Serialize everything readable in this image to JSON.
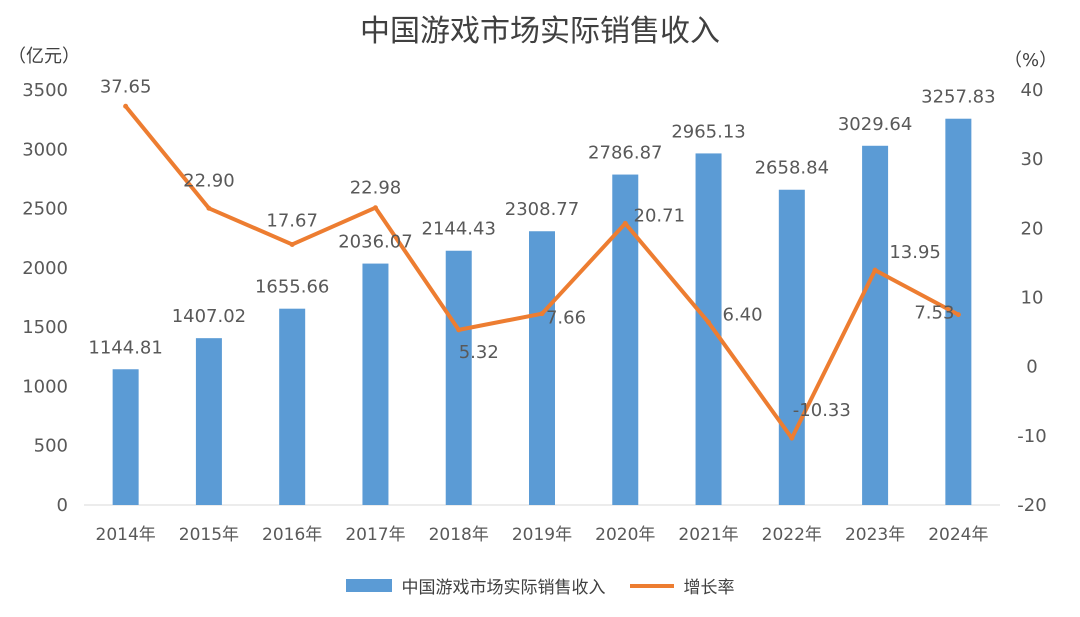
{
  "chart_data": {
    "type": "bar",
    "title": "中国游戏市场实际销售收入",
    "left_unit": "（亿元）",
    "right_unit": "（%）",
    "categories": [
      "2014年",
      "2015年",
      "2016年",
      "2017年",
      "2018年",
      "2019年",
      "2020年",
      "2021年",
      "2022年",
      "2023年",
      "2024年"
    ],
    "series": [
      {
        "name": "中国游戏市场实际销售收入",
        "type": "bar",
        "axis": "left",
        "color": "#5b9bd5",
        "values": [
          1144.81,
          1407.02,
          1655.66,
          2036.07,
          2144.43,
          2308.77,
          2786.87,
          2965.13,
          2658.84,
          3029.64,
          3257.83
        ],
        "labels": [
          "1144.81",
          "1407.02",
          "1655.66",
          "2036.07",
          "2144.43",
          "2308.77",
          "2786.87",
          "2965.13",
          "2658.84",
          "3029.64",
          "3257.83"
        ]
      },
      {
        "name": "增长率",
        "type": "line",
        "axis": "right",
        "color": "#ed7d31",
        "values": [
          37.65,
          22.9,
          17.67,
          22.98,
          5.32,
          7.66,
          20.71,
          6.4,
          -10.33,
          13.95,
          7.53
        ],
        "labels": [
          "37.65",
          "22.90",
          "17.67",
          "22.98",
          "5.32",
          "7.66",
          "20.71",
          "6.40",
          "-10.33",
          "13.95",
          "7.53"
        ]
      }
    ],
    "y_left": {
      "min": 0,
      "max": 3500,
      "ticks": [
        "0",
        "500",
        "1000",
        "1500",
        "2000",
        "2500",
        "3000",
        "3500"
      ]
    },
    "y_right": {
      "min": -20,
      "max": 40,
      "ticks": [
        "-20",
        "-10",
        "0",
        "10",
        "20",
        "30",
        "40"
      ]
    },
    "grid": false,
    "legend_position": "bottom"
  }
}
